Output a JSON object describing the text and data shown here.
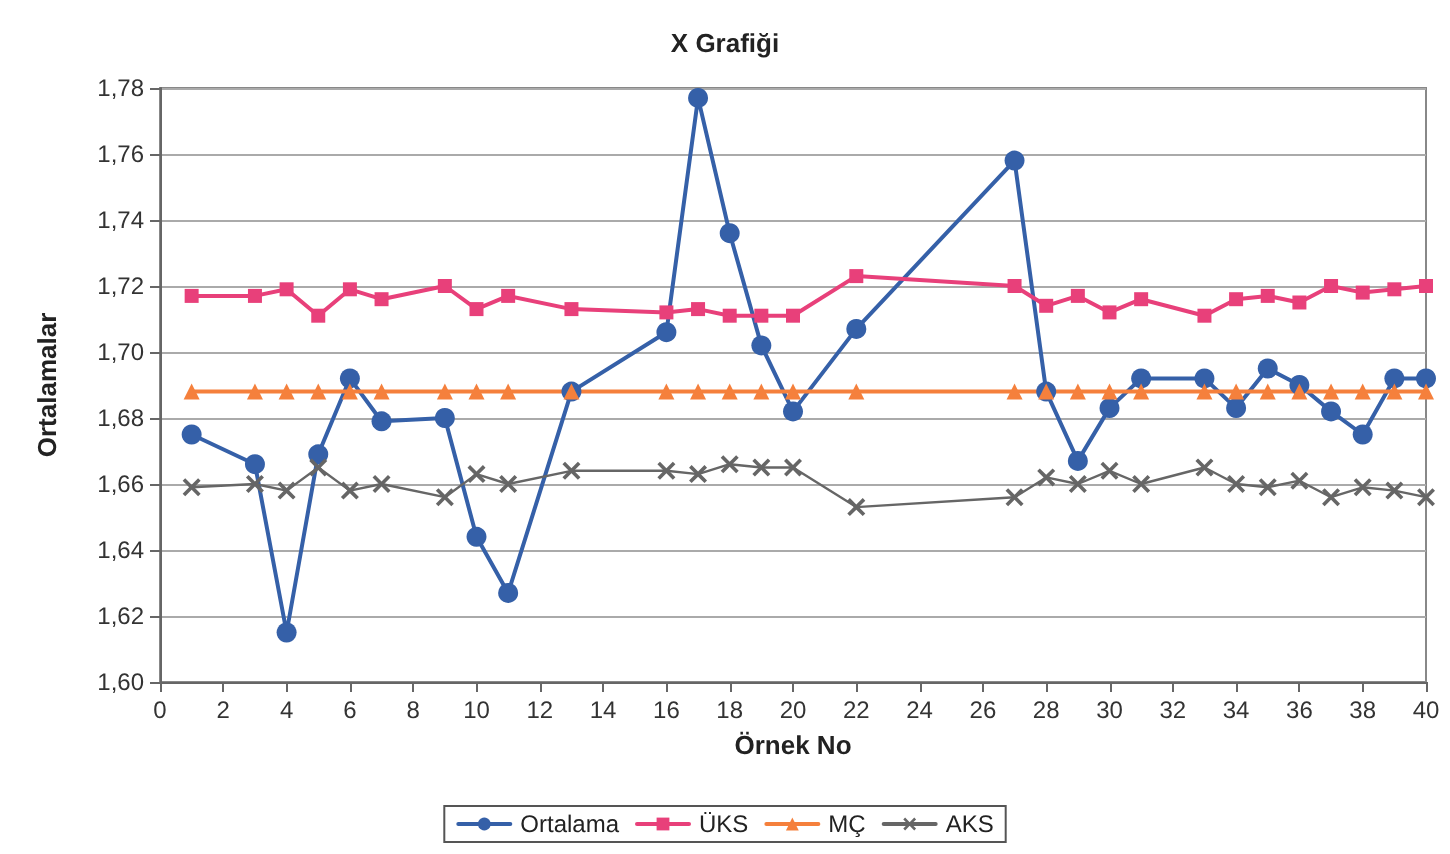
{
  "chart_data": {
    "type": "line",
    "title": "X Grafiği",
    "xlabel": "Örnek No",
    "ylabel": "Ortalamalar",
    "x": [
      1,
      3,
      4,
      5,
      6,
      7,
      9,
      10,
      11,
      13,
      16,
      17,
      18,
      19,
      20,
      22,
      27,
      28,
      29,
      30,
      31,
      33,
      34,
      35,
      36,
      37,
      38,
      39,
      40
    ],
    "series": [
      {
        "name": "Ortalama",
        "color": "#3560a8",
        "marker": "circle",
        "values": [
          1.675,
          1.666,
          1.615,
          1.669,
          1.692,
          1.679,
          1.68,
          1.644,
          1.627,
          1.688,
          1.706,
          1.777,
          1.736,
          1.702,
          1.682,
          1.707,
          1.758,
          1.688,
          1.667,
          1.683,
          1.692,
          1.692,
          1.683,
          1.695,
          1.69,
          1.682,
          1.675,
          1.692,
          1.692
        ]
      },
      {
        "name": "ÜKS",
        "color": "#e8407a",
        "marker": "square",
        "values": [
          1.717,
          1.717,
          1.719,
          1.711,
          1.719,
          1.716,
          1.72,
          1.713,
          1.717,
          1.713,
          1.712,
          1.713,
          1.711,
          1.711,
          1.711,
          1.723,
          1.72,
          1.714,
          1.717,
          1.712,
          1.716,
          1.711,
          1.716,
          1.717,
          1.715,
          1.72,
          1.718,
          1.719,
          1.72
        ]
      },
      {
        "name": "MÇ",
        "color": "#f5803c",
        "marker": "triangle",
        "values": [
          1.688,
          1.688,
          1.688,
          1.688,
          1.688,
          1.688,
          1.688,
          1.688,
          1.688,
          1.688,
          1.688,
          1.688,
          1.688,
          1.688,
          1.688,
          1.688,
          1.688,
          1.688,
          1.688,
          1.688,
          1.688,
          1.688,
          1.688,
          1.688,
          1.688,
          1.688,
          1.688,
          1.688,
          1.688
        ]
      },
      {
        "name": "AKS",
        "color": "#666666",
        "marker": "cross",
        "values": [
          1.659,
          1.66,
          1.658,
          1.665,
          1.658,
          1.66,
          1.656,
          1.663,
          1.66,
          1.664,
          1.664,
          1.663,
          1.666,
          1.665,
          1.665,
          1.653,
          1.656,
          1.662,
          1.66,
          1.664,
          1.66,
          1.665,
          1.66,
          1.659,
          1.661,
          1.656,
          1.659,
          1.658,
          1.656
        ]
      }
    ],
    "xlim": [
      0,
      40
    ],
    "xticks": [
      0,
      2,
      4,
      6,
      8,
      10,
      12,
      14,
      16,
      18,
      20,
      22,
      24,
      26,
      28,
      30,
      32,
      34,
      36,
      38,
      40
    ],
    "ylim": [
      1.6,
      1.78
    ],
    "yticks": [
      {
        "value": 1.6,
        "label": "1,60"
      },
      {
        "value": 1.62,
        "label": "1,62"
      },
      {
        "value": 1.64,
        "label": "1,64"
      },
      {
        "value": 1.66,
        "label": "1,66"
      },
      {
        "value": 1.68,
        "label": "1,68"
      },
      {
        "value": 1.7,
        "label": "1,70"
      },
      {
        "value": 1.72,
        "label": "1,72"
      },
      {
        "value": 1.74,
        "label": "1,74"
      },
      {
        "value": 1.76,
        "label": "1,76"
      },
      {
        "value": 1.78,
        "label": "1,78"
      }
    ],
    "grid": "y",
    "legend": "bottom",
    "line_style": "solid"
  }
}
